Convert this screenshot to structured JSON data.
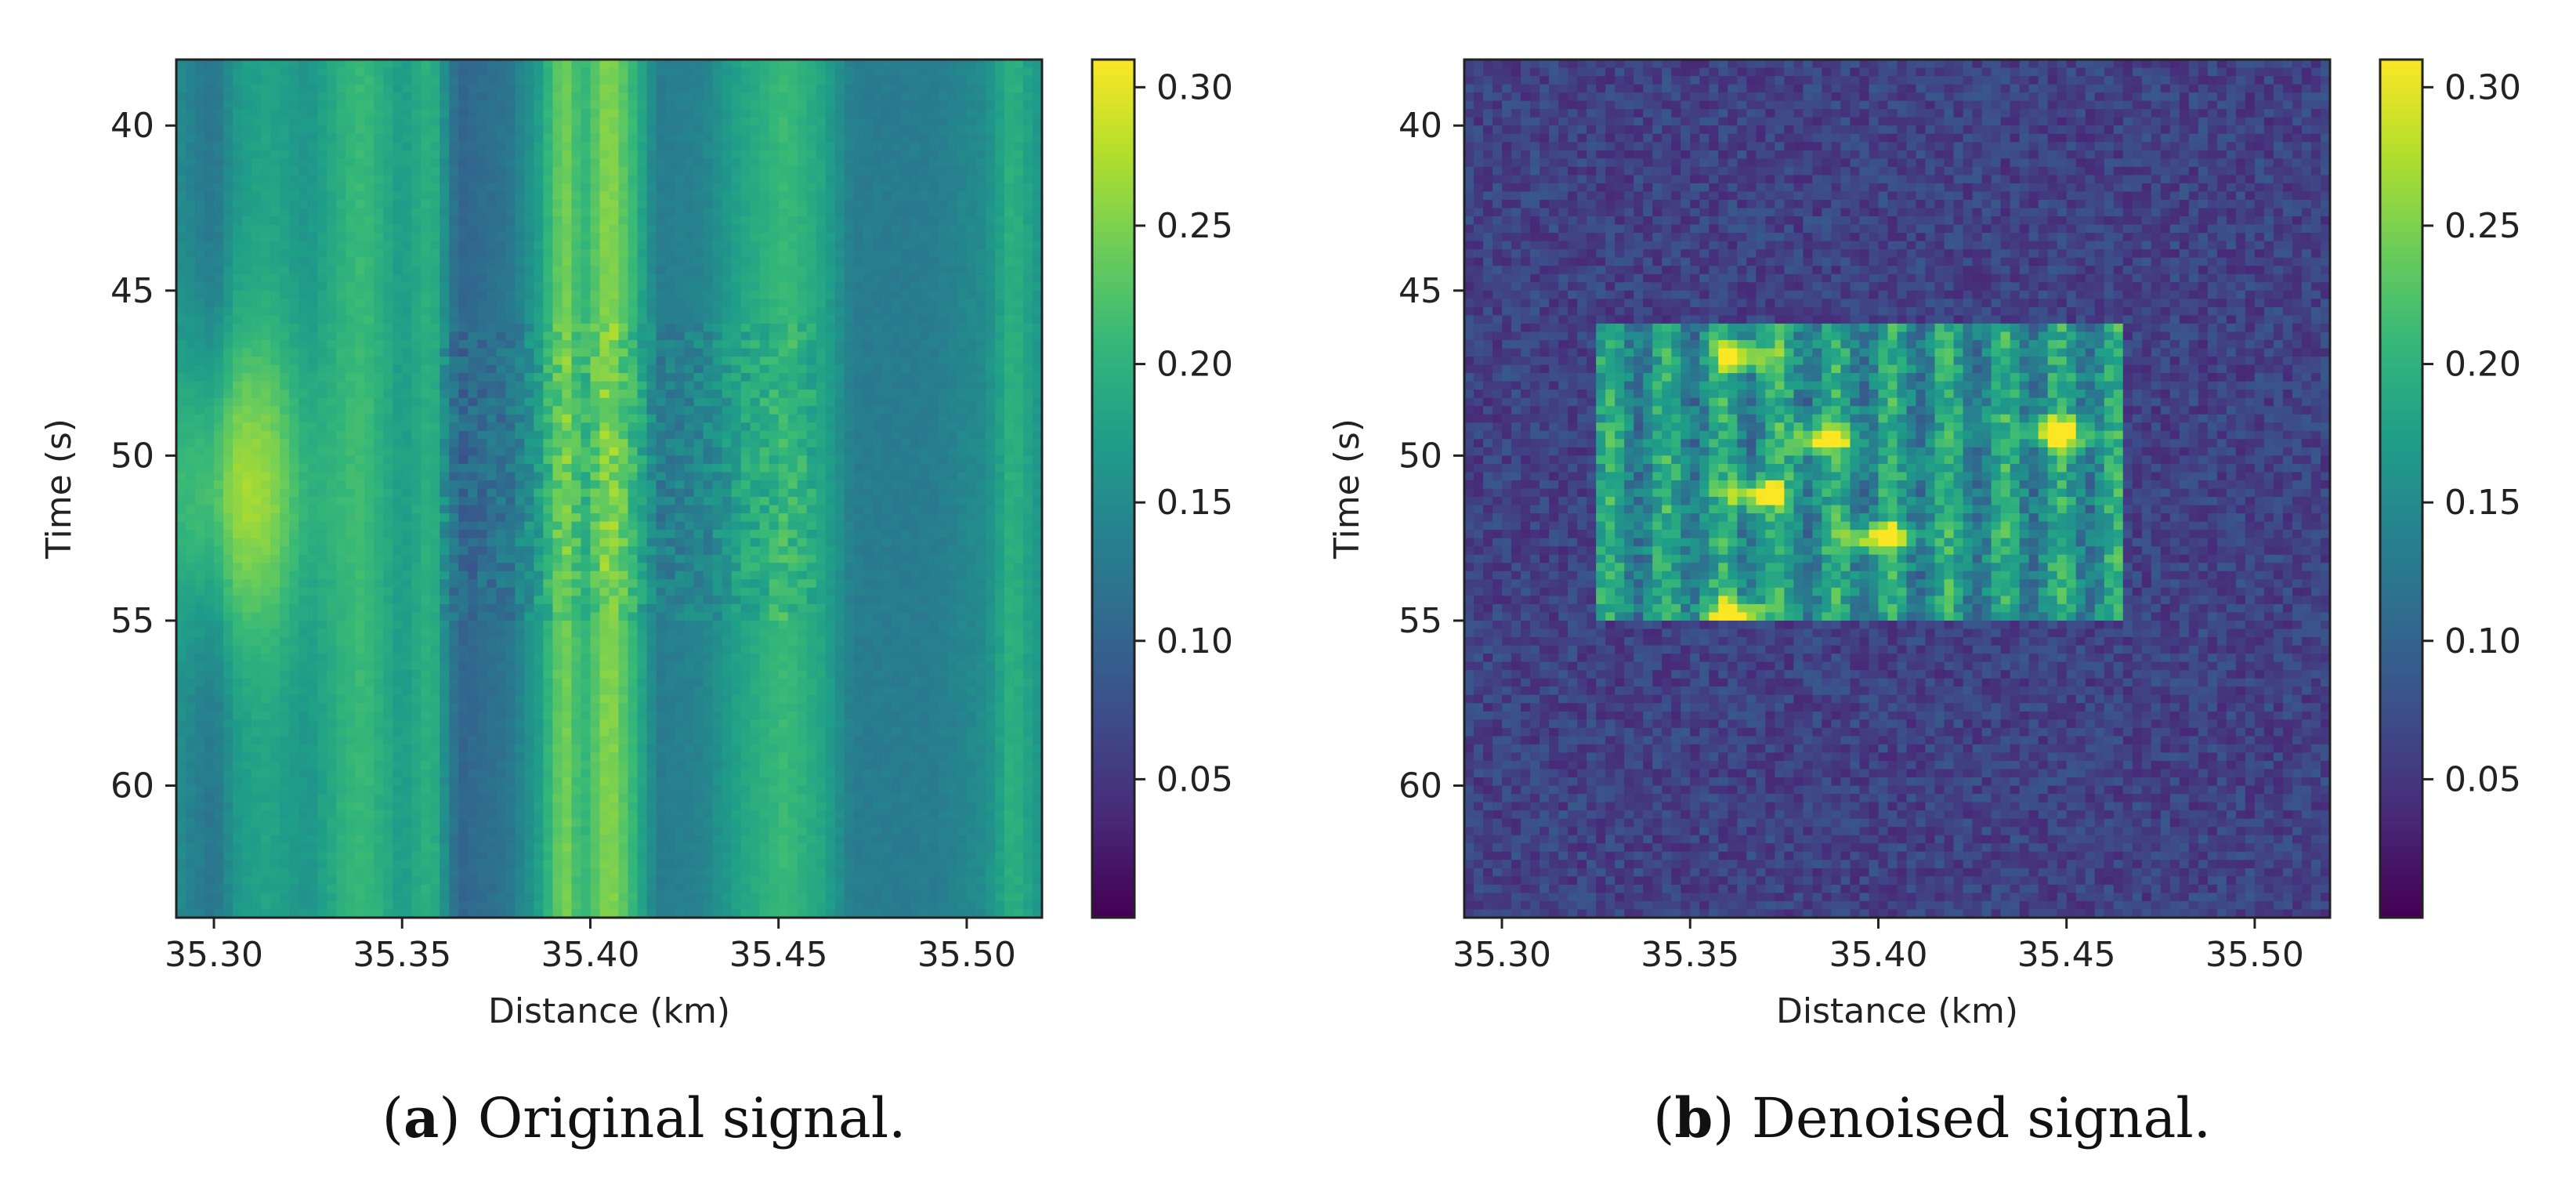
{
  "chart_data": [
    {
      "type": "heatmap",
      "panel_label": "a",
      "caption": "Original signal.",
      "xlabel": "Distance (km)",
      "ylabel": "Time (s)",
      "xlim": [
        35.29,
        35.52
      ],
      "ylim": [
        38,
        64
      ],
      "xticks": [
        35.3,
        35.35,
        35.4,
        35.45,
        35.5
      ],
      "xtick_labels": [
        "35.30",
        "35.35",
        "35.40",
        "35.45",
        "35.50"
      ],
      "yticks": [
        40,
        45,
        50,
        55,
        60
      ],
      "ytick_labels": [
        "40",
        "45",
        "50",
        "55",
        "60"
      ],
      "colormap": "viridis",
      "clim": [
        0.0,
        0.31
      ],
      "colorbar_ticks": [
        0.05,
        0.1,
        0.15,
        0.2,
        0.25,
        0.3
      ],
      "colorbar_labels": [
        "0.05",
        "0.10",
        "0.15",
        "0.20",
        "0.25",
        "0.30"
      ],
      "pattern": "vertical-stripes",
      "column_profile": [
        {
          "x": 35.29,
          "v": 0.15
        },
        {
          "x": 35.3,
          "v": 0.12
        },
        {
          "x": 35.307,
          "v": 0.17
        },
        {
          "x": 35.315,
          "v": 0.18
        },
        {
          "x": 35.325,
          "v": 0.16
        },
        {
          "x": 35.335,
          "v": 0.2
        },
        {
          "x": 35.34,
          "v": 0.21
        },
        {
          "x": 35.35,
          "v": 0.17
        },
        {
          "x": 35.358,
          "v": 0.2
        },
        {
          "x": 35.365,
          "v": 0.1
        },
        {
          "x": 35.378,
          "v": 0.12
        },
        {
          "x": 35.386,
          "v": 0.17
        },
        {
          "x": 35.393,
          "v": 0.25
        },
        {
          "x": 35.398,
          "v": 0.2
        },
        {
          "x": 35.405,
          "v": 0.26
        },
        {
          "x": 35.412,
          "v": 0.2
        },
        {
          "x": 35.418,
          "v": 0.13
        },
        {
          "x": 35.43,
          "v": 0.14
        },
        {
          "x": 35.44,
          "v": 0.18
        },
        {
          "x": 35.452,
          "v": 0.21
        },
        {
          "x": 35.462,
          "v": 0.18
        },
        {
          "x": 35.47,
          "v": 0.13
        },
        {
          "x": 35.49,
          "v": 0.13
        },
        {
          "x": 35.505,
          "v": 0.15
        },
        {
          "x": 35.512,
          "v": 0.2
        },
        {
          "x": 35.52,
          "v": 0.16
        }
      ],
      "hotspot": {
        "x": 35.305,
        "t": 51,
        "v": 0.27
      },
      "event_band": {
        "t_start": 46,
        "t_end": 55,
        "x_start": 35.36,
        "x_end": 35.46
      }
    },
    {
      "type": "heatmap",
      "panel_label": "b",
      "caption": "Denoised signal.",
      "xlabel": "Distance (km)",
      "ylabel": "Time (s)",
      "xlim": [
        35.29,
        35.52
      ],
      "ylim": [
        38,
        64
      ],
      "xticks": [
        35.3,
        35.35,
        35.4,
        35.45,
        35.5
      ],
      "xtick_labels": [
        "35.30",
        "35.35",
        "35.40",
        "35.45",
        "35.50"
      ],
      "yticks": [
        40,
        45,
        50,
        55,
        60
      ],
      "ytick_labels": [
        "40",
        "45",
        "50",
        "55",
        "60"
      ],
      "colormap": "viridis",
      "clim": [
        0.0,
        0.31
      ],
      "colorbar_ticks": [
        0.05,
        0.1,
        0.15,
        0.2,
        0.25,
        0.3
      ],
      "colorbar_labels": [
        "0.05",
        "0.10",
        "0.15",
        "0.20",
        "0.25",
        "0.30"
      ],
      "pattern": "noise-background-with-event",
      "background_level": 0.06,
      "event_region": {
        "x_start": 35.325,
        "x_end": 35.465,
        "t_start": 46,
        "t_end": 55,
        "peak": 0.3
      },
      "bright_spots": [
        {
          "x": 35.365,
          "t": 47.0
        },
        {
          "x": 35.368,
          "t": 51.2
        },
        {
          "x": 35.362,
          "t": 54.8
        },
        {
          "x": 35.385,
          "t": 49.5
        },
        {
          "x": 35.448,
          "t": 49.3
        },
        {
          "x": 35.4,
          "t": 52.5
        }
      ]
    }
  ]
}
